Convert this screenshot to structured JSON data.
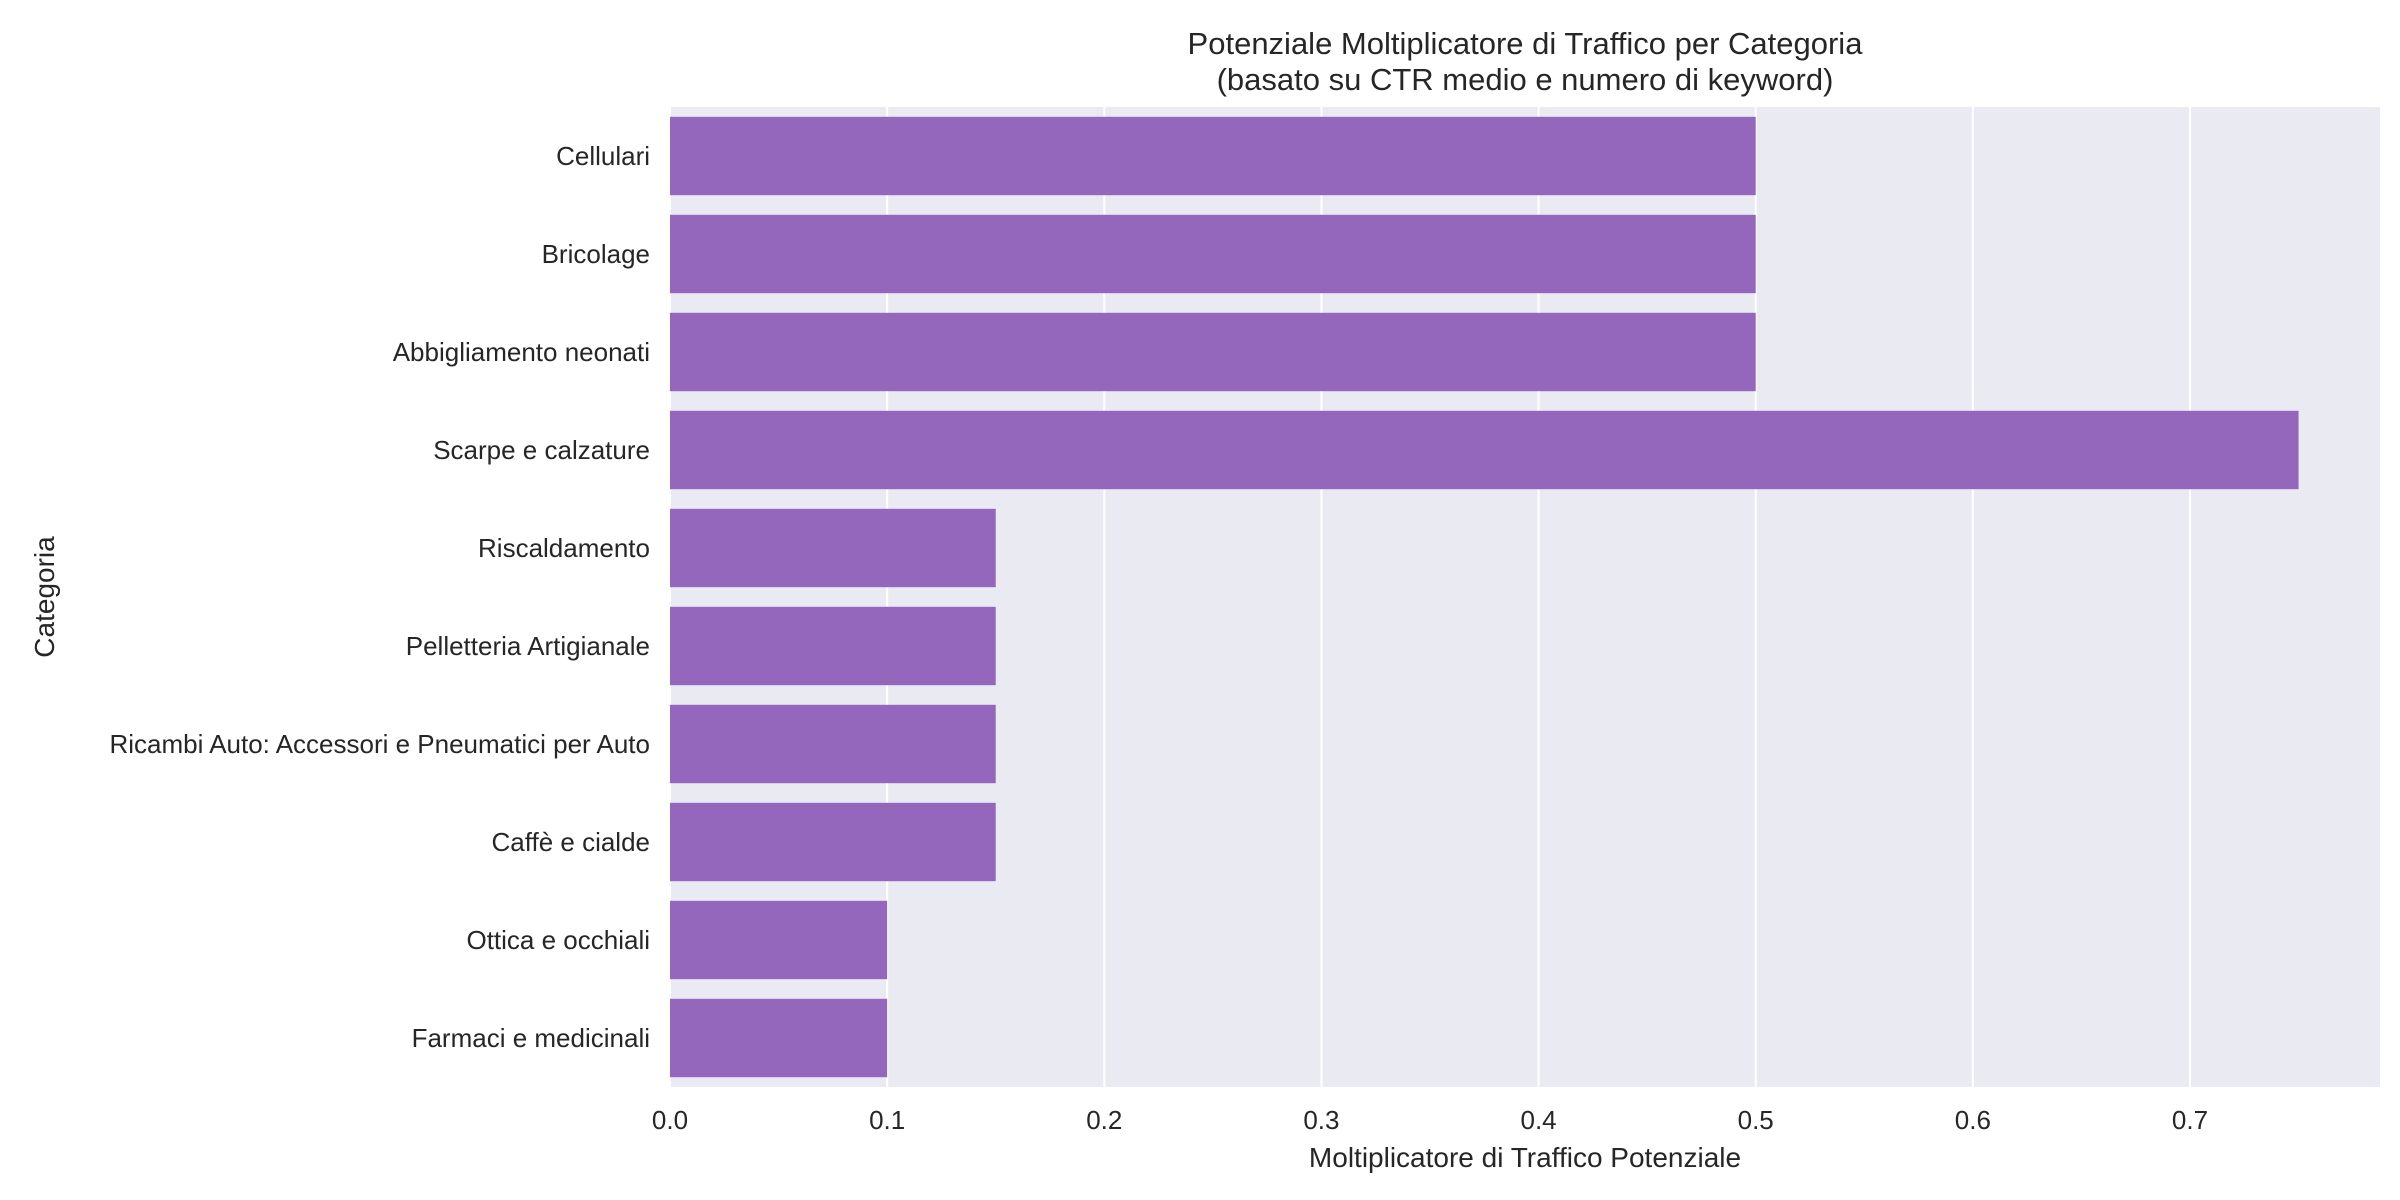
{
  "chart_data": {
    "type": "bar",
    "orientation": "horizontal",
    "title": "Potenziale Moltiplicatore di Traffico per Categoria",
    "subtitle": "(basato su CTR medio e numero di keyword)",
    "xlabel": "Moltiplicatore di Traffico Potenziale",
    "ylabel": "Categoria",
    "xlim": [
      0,
      0.7875
    ],
    "xticks": [
      "0.0",
      "0.1",
      "0.2",
      "0.3",
      "0.4",
      "0.5",
      "0.6",
      "0.7"
    ],
    "grid": true,
    "bar_color": "#9467bd",
    "background_color": "#eaeaf2",
    "categories": [
      "Cellulari",
      "Bricolage",
      "Abbigliamento neonati",
      "Scarpe e calzature",
      "Riscaldamento",
      "Pelletteria Artigianale",
      "Ricambi Auto: Accessori e Pneumatici per Auto",
      "Caffè e cialde",
      "Ottica e occhiali",
      "Farmaci e medicinali"
    ],
    "values": [
      0.5,
      0.5,
      0.5,
      0.75,
      0.15,
      0.15,
      0.15,
      0.15,
      0.1,
      0.1
    ]
  }
}
